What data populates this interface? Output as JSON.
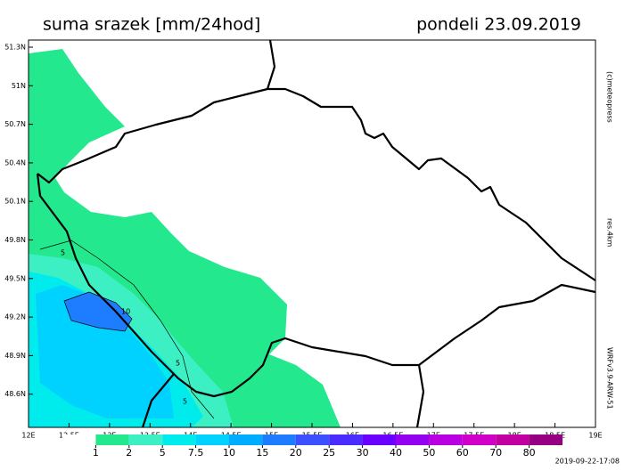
{
  "header": {
    "title": "suma srazek [mm/24hod]",
    "date": "pondeli 23.09.2019"
  },
  "axes": {
    "x_labels": [
      "12E",
      "12.5E",
      "13E",
      "13.5E",
      "14E",
      "14.5E",
      "15E",
      "15.5E",
      "16E",
      "16.5E",
      "17E",
      "17.5E",
      "18E",
      "18.5E",
      "19E"
    ],
    "y_labels": [
      "51.3N",
      "51N",
      "50.7N",
      "50.4N",
      "50.1N",
      "49.8N",
      "49.5N",
      "49.2N",
      "48.9N",
      "48.6N"
    ]
  },
  "side_texts": {
    "copyright": "(c)meteopress",
    "resolution": "res.4km",
    "model": "WRFv3.9-ARW-51"
  },
  "contour_labels": [
    "5",
    "10",
    "5",
    "5"
  ],
  "legend": {
    "levels": [
      1,
      2,
      5,
      7.5,
      10,
      15,
      20,
      25,
      30,
      40,
      50,
      60,
      70,
      80
    ],
    "colors": [
      "#ffffff",
      "#24e88e",
      "#3cf0c4",
      "#00ecec",
      "#00d2ff",
      "#00acff",
      "#1e7cff",
      "#3c50ff",
      "#4a2cff",
      "#6a00ff",
      "#9400f0",
      "#b800e0",
      "#d000c8",
      "#c000a0",
      "#960080"
    ]
  },
  "footer": {
    "timestamp": "2019-09-22-17:08"
  }
}
